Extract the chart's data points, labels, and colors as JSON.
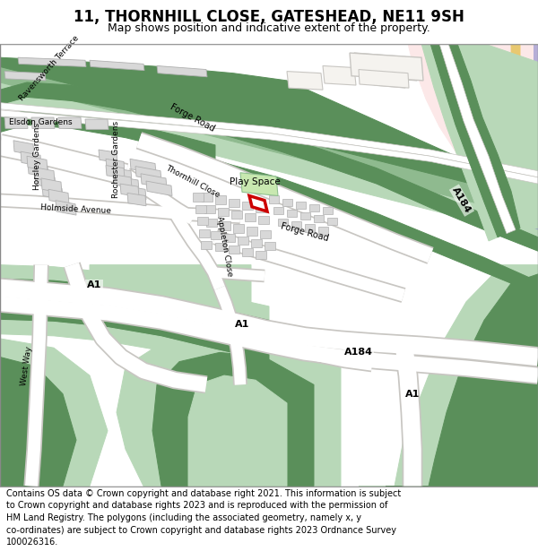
{
  "title": "11, THORNHILL CLOSE, GATESHEAD, NE11 9SH",
  "subtitle": "Map shows position and indicative extent of the property.",
  "footer": "Contains OS data © Crown copyright and database right 2021. This information is subject\nto Crown copyright and database rights 2023 and is reproduced with the permission of\nHM Land Registry. The polygons (including the associated geometry, namely x, y\nco-ordinates) are subject to Crown copyright and database rights 2023 Ordnance Survey\n100026316.",
  "bg": "#f5f3ef",
  "white": "#ffffff",
  "road_grey": "#e8e6e2",
  "road_edge": "#c8c6c2",
  "green_dark": "#5a8f5a",
  "green_med": "#8fba8f",
  "green_light": "#b8d8b8",
  "green_verge": "#c8dcc8",
  "pink": "#f5d0d0",
  "pink_light": "#fce8e8",
  "orange": "#e8c870",
  "blue_line": "#8888cc",
  "bld": "#d8d8d8",
  "bld_edge": "#b0b0b0",
  "red": "#cc0000",
  "title_fs": 12,
  "sub_fs": 9
}
